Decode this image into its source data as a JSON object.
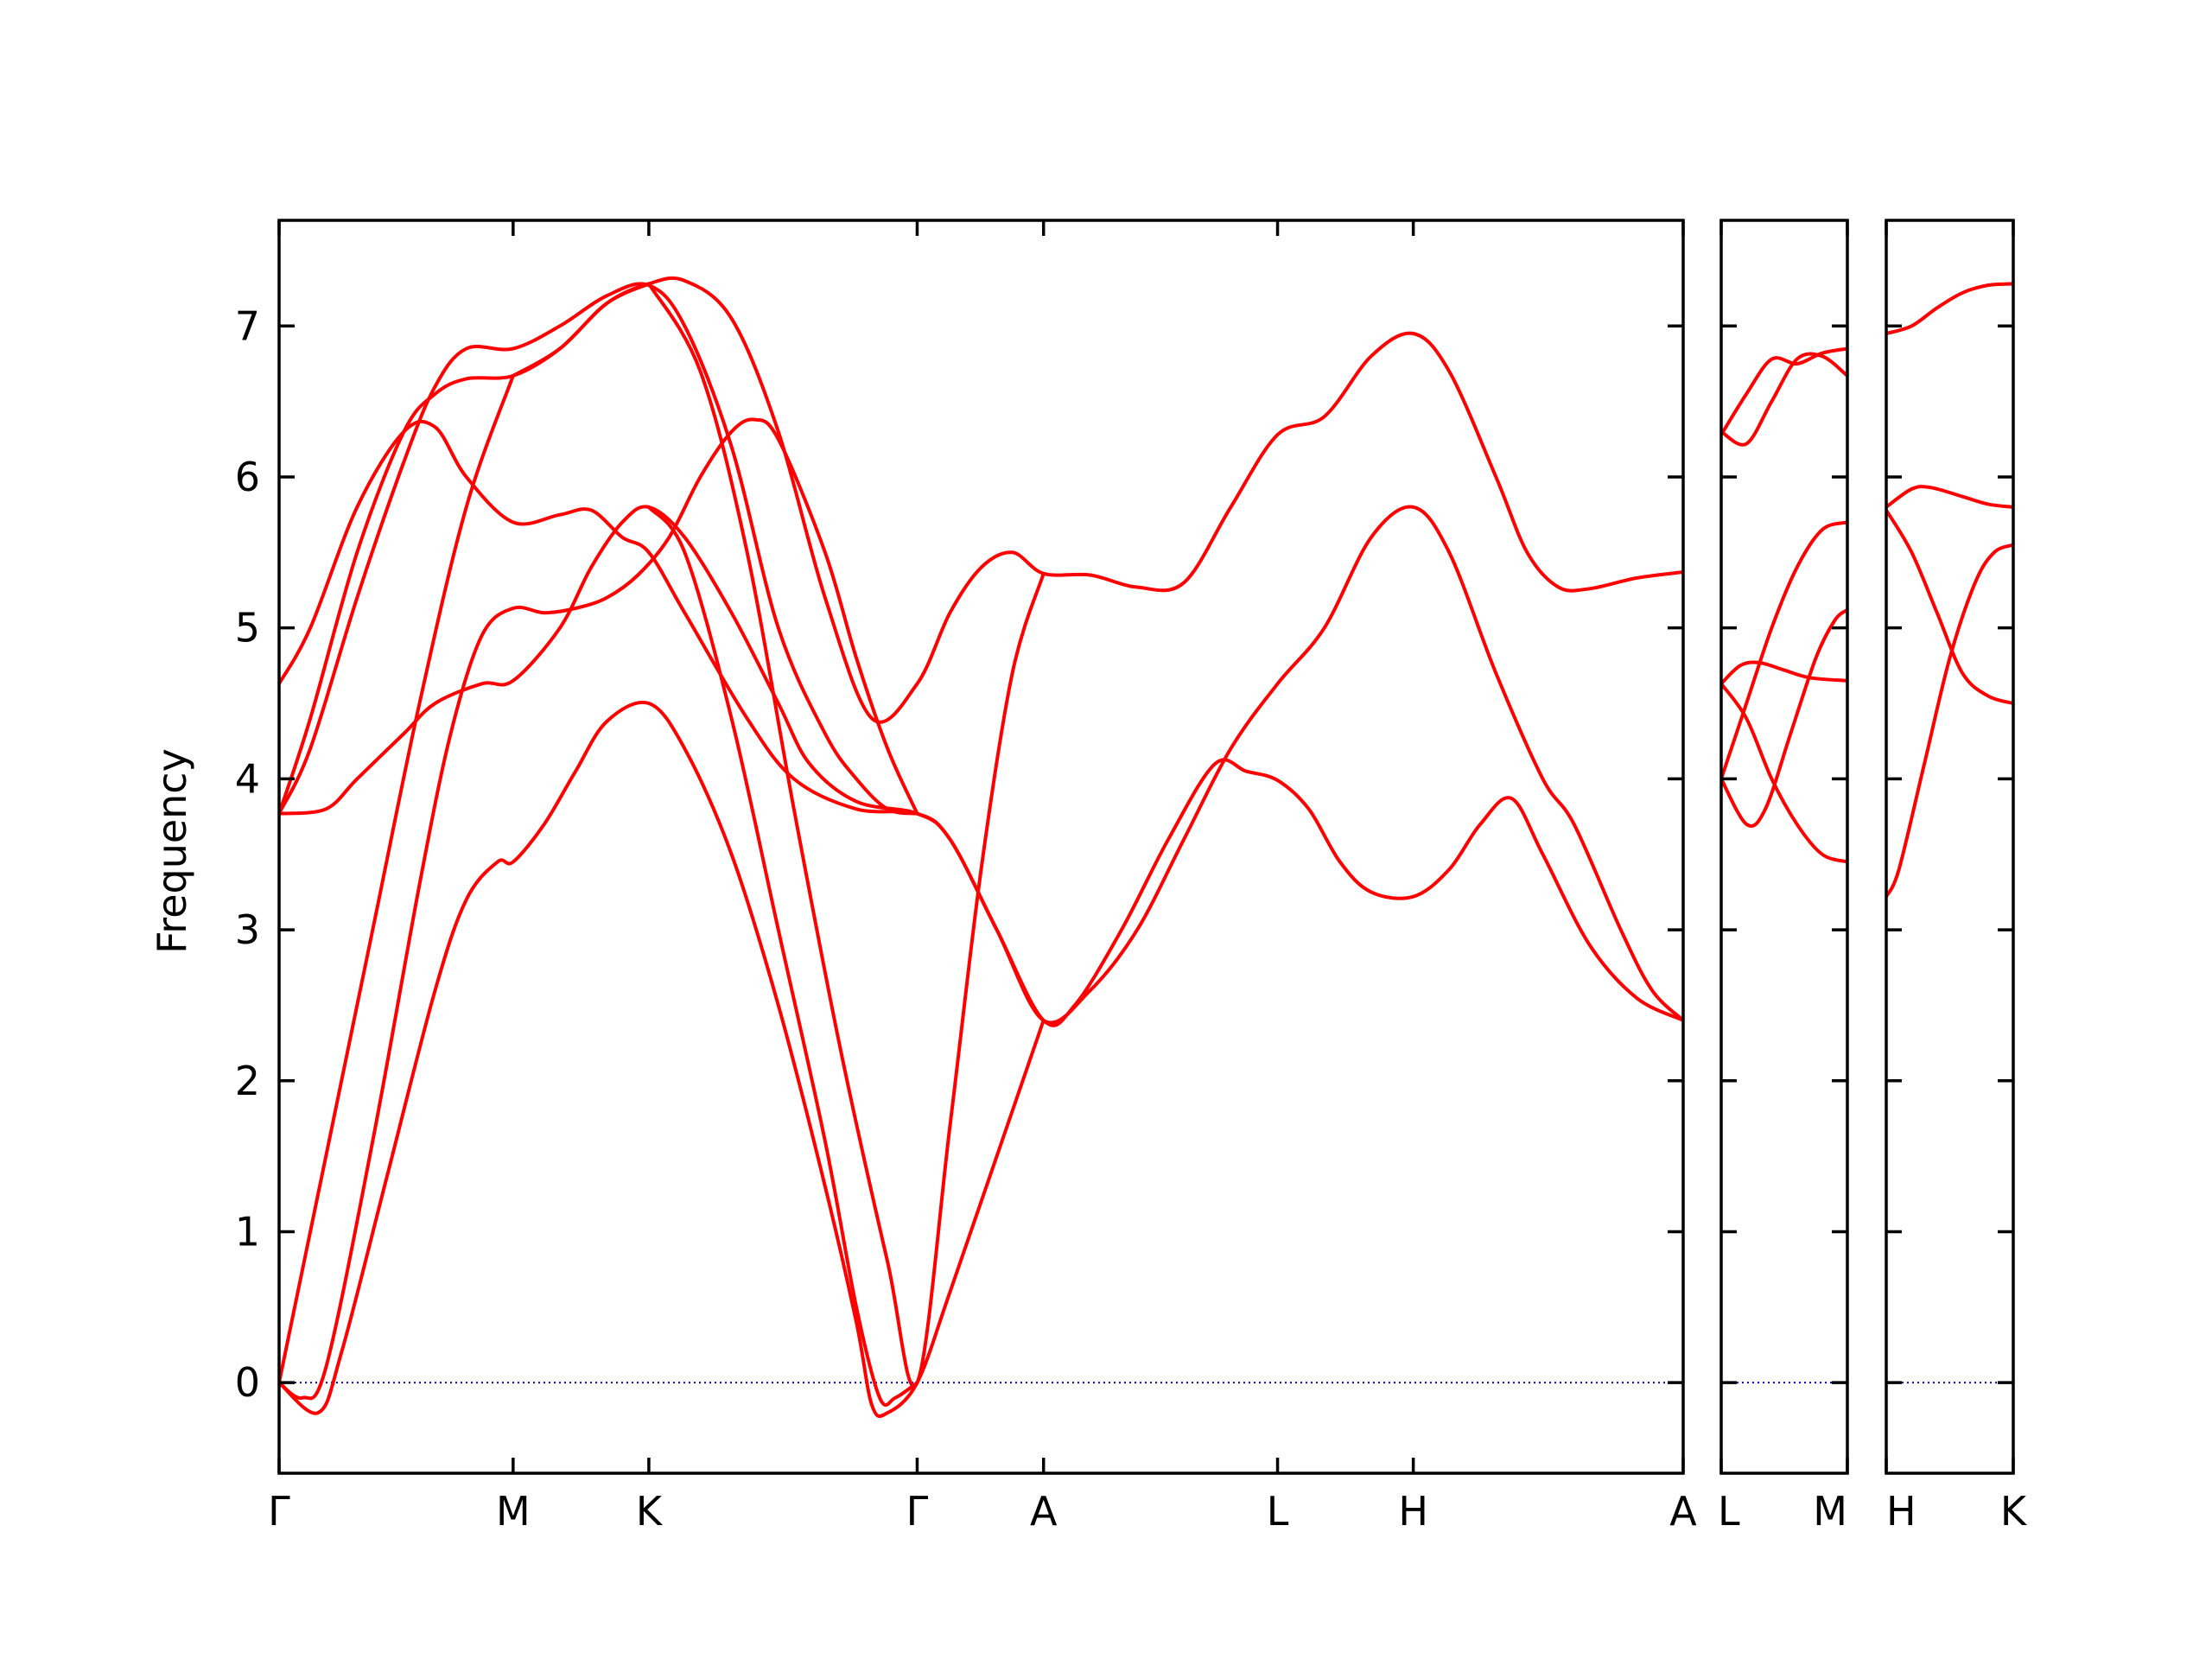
{
  "chart_data": {
    "type": "line",
    "ylabel": "Frequency",
    "ylim": [
      -0.6,
      7.7
    ],
    "yticks": [
      0,
      1,
      2,
      3,
      4,
      5,
      6,
      7
    ],
    "zero_line_color": "#0000cc",
    "band_color": "#ff0000",
    "panels": [
      {
        "xlim": [
          0,
          9.0
        ],
        "ticks": [
          {
            "x": 0.0,
            "label": "Γ"
          },
          {
            "x": 1.5,
            "label": "M"
          },
          {
            "x": 2.37,
            "label": "K"
          },
          {
            "x": 4.09,
            "label": "Γ"
          },
          {
            "x": 4.9,
            "label": "A"
          },
          {
            "x": 6.4,
            "label": "L"
          },
          {
            "x": 7.27,
            "label": "H"
          },
          {
            "x": 9.0,
            "label": "A"
          }
        ],
        "bands": [
          [
            [
              0,
              4.63
            ],
            [
              0.2,
              5.0
            ],
            [
              0.5,
              5.8
            ],
            [
              0.8,
              6.3
            ],
            [
              1.0,
              6.33
            ],
            [
              1.2,
              6.0
            ],
            [
              1.5,
              5.7
            ],
            [
              1.8,
              5.75
            ],
            [
              2.0,
              5.78
            ],
            [
              2.2,
              5.6
            ],
            [
              2.37,
              5.5
            ],
            [
              2.6,
              5.1
            ],
            [
              3.0,
              4.4
            ],
            [
              3.3,
              4.0
            ],
            [
              3.7,
              3.8
            ],
            [
              4.09,
              3.77
            ],
            [
              4.3,
              3.6
            ],
            [
              4.6,
              3.0
            ],
            [
              4.9,
              2.4
            ],
            [
              5.2,
              2.6
            ],
            [
              5.5,
              3.0
            ],
            [
              5.8,
              3.6
            ],
            [
              6.1,
              4.2
            ],
            [
              6.4,
              4.63
            ],
            [
              6.7,
              5.0
            ],
            [
              7.0,
              5.6
            ],
            [
              7.27,
              5.8
            ],
            [
              7.5,
              5.5
            ],
            [
              7.8,
              4.7
            ],
            [
              8.1,
              4.0
            ],
            [
              8.3,
              3.7
            ],
            [
              8.6,
              3.0
            ],
            [
              8.8,
              2.6
            ],
            [
              9.0,
              2.4
            ]
          ],
          [
            [
              0,
              3.77
            ],
            [
              0.3,
              3.8
            ],
            [
              0.5,
              4.0
            ],
            [
              0.8,
              4.3
            ],
            [
              1.0,
              4.5
            ],
            [
              1.3,
              4.63
            ],
            [
              1.5,
              4.65
            ],
            [
              1.8,
              5.0
            ],
            [
              2.0,
              5.4
            ],
            [
              2.2,
              5.7
            ],
            [
              2.37,
              5.8
            ],
            [
              2.6,
              5.6
            ],
            [
              2.9,
              5.1
            ],
            [
              3.2,
              4.5
            ],
            [
              3.4,
              4.1
            ],
            [
              3.7,
              3.85
            ],
            [
              4.09,
              3.77
            ],
            [
              4.3,
              3.6
            ],
            [
              4.6,
              3.0
            ],
            [
              4.9,
              2.4
            ],
            [
              5.1,
              2.5
            ],
            [
              5.4,
              3.0
            ],
            [
              5.7,
              3.6
            ],
            [
              6.0,
              4.1
            ],
            [
              6.2,
              4.05
            ],
            [
              6.4,
              3.99
            ],
            [
              6.6,
              3.8
            ],
            [
              6.8,
              3.45
            ],
            [
              7.0,
              3.25
            ],
            [
              7.27,
              3.22
            ],
            [
              7.5,
              3.4
            ],
            [
              7.7,
              3.7
            ],
            [
              7.9,
              3.87
            ],
            [
              8.1,
              3.5
            ],
            [
              8.4,
              2.9
            ],
            [
              8.7,
              2.55
            ],
            [
              9.0,
              2.4
            ]
          ],
          [
            [
              0,
              3.77
            ],
            [
              0.2,
              4.2
            ],
            [
              0.5,
              5.2
            ],
            [
              0.8,
              6.1
            ],
            [
              1.0,
              6.6
            ],
            [
              1.2,
              6.85
            ],
            [
              1.5,
              6.85
            ],
            [
              1.8,
              7.0
            ],
            [
              2.1,
              7.2
            ],
            [
              2.37,
              7.27
            ],
            [
              2.6,
              7.0
            ],
            [
              2.9,
              6.2
            ],
            [
              3.2,
              5.0
            ],
            [
              3.5,
              4.3
            ],
            [
              3.7,
              4.0
            ],
            [
              3.9,
              3.8
            ],
            [
              4.09,
              3.77
            ]
          ],
          [
            [
              0,
              3.77
            ],
            [
              0.2,
              4.4
            ],
            [
              0.5,
              5.5
            ],
            [
              0.8,
              6.3
            ],
            [
              1.0,
              6.55
            ],
            [
              1.2,
              6.65
            ],
            [
              1.5,
              6.67
            ],
            [
              1.8,
              6.85
            ],
            [
              2.1,
              7.15
            ],
            [
              2.37,
              7.28
            ],
            [
              2.6,
              7.3
            ],
            [
              2.9,
              7.05
            ],
            [
              3.2,
              6.3
            ],
            [
              3.5,
              5.2
            ],
            [
              3.8,
              4.4
            ],
            [
              4.09,
              4.63
            ],
            [
              4.3,
              5.1
            ],
            [
              4.5,
              5.4
            ],
            [
              4.7,
              5.5
            ],
            [
              4.9,
              5.36
            ],
            [
              5.2,
              5.35
            ],
            [
              5.5,
              5.27
            ],
            [
              5.8,
              5.3
            ],
            [
              6.1,
              5.8
            ],
            [
              6.4,
              6.28
            ],
            [
              6.7,
              6.4
            ],
            [
              7.0,
              6.8
            ],
            [
              7.27,
              6.95
            ],
            [
              7.5,
              6.7
            ],
            [
              7.8,
              6.0
            ],
            [
              8.0,
              5.5
            ],
            [
              8.2,
              5.27
            ],
            [
              8.4,
              5.26
            ],
            [
              8.7,
              5.33
            ],
            [
              9.0,
              5.37
            ]
          ],
          [
            [
              0,
              0.0
            ],
            [
              0.15,
              -0.1
            ],
            [
              0.3,
              0.1
            ],
            [
              0.6,
              1.6
            ],
            [
              0.9,
              3.3
            ],
            [
              1.1,
              4.3
            ],
            [
              1.3,
              4.95
            ],
            [
              1.5,
              5.13
            ],
            [
              1.7,
              5.1
            ],
            [
              1.9,
              5.13
            ],
            [
              2.1,
              5.2
            ],
            [
              2.3,
              5.35
            ],
            [
              2.5,
              5.6
            ],
            [
              2.7,
              6.0
            ],
            [
              2.9,
              6.3
            ],
            [
              3.05,
              6.38
            ],
            [
              3.2,
              6.25
            ],
            [
              3.5,
              5.5
            ],
            [
              3.7,
              4.8
            ],
            [
              3.9,
              4.2
            ],
            [
              4.09,
              3.77
            ]
          ],
          [
            [
              0,
              0.0
            ],
            [
              0.25,
              -0.2
            ],
            [
              0.4,
              0.2
            ],
            [
              0.7,
              1.4
            ],
            [
              1.0,
              2.6
            ],
            [
              1.2,
              3.2
            ],
            [
              1.4,
              3.45
            ],
            [
              1.5,
              3.45
            ],
            [
              1.7,
              3.7
            ],
            [
              1.9,
              4.05
            ],
            [
              2.1,
              4.38
            ],
            [
              2.37,
              4.5
            ],
            [
              2.6,
              4.2
            ],
            [
              2.9,
              3.5
            ],
            [
              3.2,
              2.5
            ],
            [
              3.5,
              1.3
            ],
            [
              3.7,
              0.4
            ],
            [
              3.8,
              -0.15
            ],
            [
              3.9,
              -0.2
            ],
            [
              4.09,
              0.0
            ],
            [
              4.3,
              0.6
            ],
            [
              4.6,
              1.5
            ],
            [
              4.9,
              2.4
            ]
          ],
          [
            [
              0,
              0.0
            ],
            [
              0.3,
              1.5
            ],
            [
              0.6,
              3.0
            ],
            [
              0.9,
              4.5
            ],
            [
              1.2,
              5.8
            ],
            [
              1.5,
              6.67
            ]
          ],
          [
            [
              1.5,
              6.67
            ],
            [
              1.8,
              6.85
            ],
            [
              2.1,
              7.15
            ],
            [
              2.37,
              7.28
            ]
          ],
          [
            [
              2.37,
              7.28
            ],
            [
              2.7,
              6.7
            ],
            [
              3.0,
              5.5
            ],
            [
              3.3,
              3.8
            ],
            [
              3.6,
              2.2
            ],
            [
              3.9,
              0.8
            ],
            [
              4.09,
              0.0
            ],
            [
              4.3,
              1.7
            ],
            [
              4.5,
              3.4
            ],
            [
              4.7,
              4.7
            ],
            [
              4.9,
              5.36
            ]
          ],
          [
            [
              2.37,
              5.8
            ],
            [
              2.6,
              5.5
            ],
            [
              2.9,
              4.4
            ],
            [
              3.2,
              3.0
            ],
            [
              3.5,
              1.6
            ],
            [
              3.7,
              0.5
            ],
            [
              3.85,
              -0.1
            ],
            [
              3.95,
              -0.1
            ],
            [
              4.09,
              0.0
            ]
          ]
        ]
      },
      {
        "xlim": [
          0,
          1.0
        ],
        "ticks": [
          {
            "x": 0.0,
            "label": "L"
          },
          {
            "x": 1.0,
            "label": "M"
          }
        ],
        "bands": [
          [
            [
              0,
              6.3
            ],
            [
              0.2,
              6.22
            ],
            [
              0.4,
              6.5
            ],
            [
              0.6,
              6.78
            ],
            [
              0.8,
              6.8
            ],
            [
              1.0,
              6.67
            ]
          ],
          [
            [
              0,
              6.28
            ],
            [
              0.2,
              6.55
            ],
            [
              0.4,
              6.78
            ],
            [
              0.6,
              6.75
            ],
            [
              0.8,
              6.82
            ],
            [
              1.0,
              6.85
            ]
          ],
          [
            [
              0,
              4.63
            ],
            [
              0.15,
              4.75
            ],
            [
              0.3,
              4.77
            ],
            [
              0.5,
              4.72
            ],
            [
              0.7,
              4.67
            ],
            [
              1.0,
              4.65
            ]
          ],
          [
            [
              0,
              4.63
            ],
            [
              0.2,
              4.4
            ],
            [
              0.4,
              4.0
            ],
            [
              0.6,
              3.7
            ],
            [
              0.8,
              3.5
            ],
            [
              1.0,
              3.45
            ]
          ],
          [
            [
              0,
              4.0
            ],
            [
              0.2,
              3.7
            ],
            [
              0.35,
              3.8
            ],
            [
              0.55,
              4.3
            ],
            [
              0.75,
              4.8
            ],
            [
              0.9,
              5.05
            ],
            [
              1.0,
              5.12
            ]
          ],
          [
            [
              0,
              4.0
            ],
            [
              0.2,
              4.5
            ],
            [
              0.4,
              5.0
            ],
            [
              0.6,
              5.4
            ],
            [
              0.8,
              5.65
            ],
            [
              1.0,
              5.7
            ]
          ]
        ]
      },
      {
        "xlim": [
          0,
          1.0
        ],
        "ticks": [
          {
            "x": 0.0,
            "label": "H"
          },
          {
            "x": 1.0,
            "label": "K"
          }
        ],
        "bands": [
          [
            [
              0,
              6.95
            ],
            [
              0.2,
              7.0
            ],
            [
              0.4,
              7.12
            ],
            [
              0.6,
              7.22
            ],
            [
              0.8,
              7.27
            ],
            [
              1.0,
              7.28
            ]
          ],
          [
            [
              0,
              5.8
            ],
            [
              0.2,
              5.92
            ],
            [
              0.35,
              5.93
            ],
            [
              0.6,
              5.87
            ],
            [
              0.8,
              5.82
            ],
            [
              1.0,
              5.8
            ]
          ],
          [
            [
              0,
              5.78
            ],
            [
              0.2,
              5.5
            ],
            [
              0.4,
              5.1
            ],
            [
              0.6,
              4.7
            ],
            [
              0.8,
              4.55
            ],
            [
              1.0,
              4.5
            ]
          ],
          [
            [
              0,
              3.22
            ],
            [
              0.1,
              3.4
            ],
            [
              0.3,
              4.1
            ],
            [
              0.5,
              4.8
            ],
            [
              0.7,
              5.3
            ],
            [
              0.85,
              5.5
            ],
            [
              1.0,
              5.55
            ]
          ]
        ]
      }
    ]
  }
}
